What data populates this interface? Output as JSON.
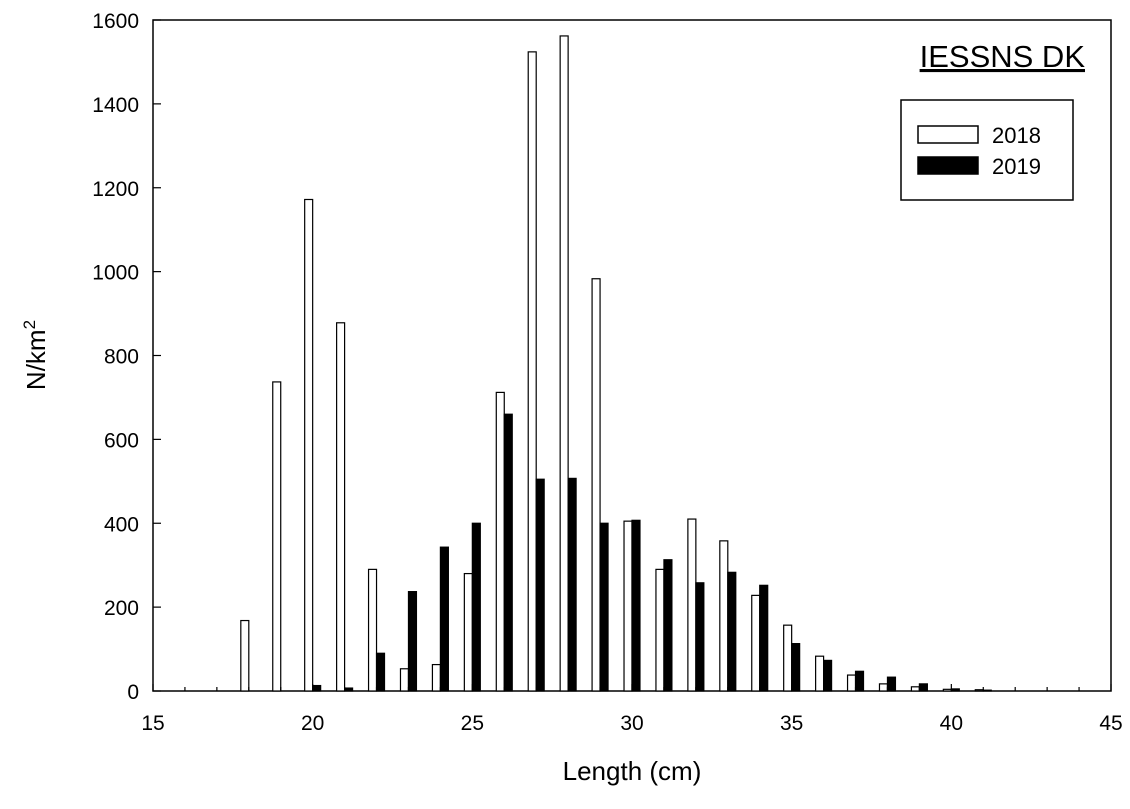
{
  "chart_data": {
    "type": "bar",
    "title": "",
    "xlabel": "Length (cm)",
    "ylabel": "N/km",
    "ylabel_superscript": "2",
    "annotation": "IESSNS DK",
    "xlim": [
      15,
      45
    ],
    "ylim": [
      0,
      1600
    ],
    "xticks": [
      15,
      20,
      25,
      30,
      35,
      40,
      45
    ],
    "yticks": [
      0,
      200,
      400,
      600,
      800,
      1000,
      1200,
      1400,
      1600
    ],
    "grid": false,
    "legend_position": "top-right",
    "x": [
      18,
      19,
      20,
      21,
      22,
      23,
      24,
      25,
      26,
      27,
      28,
      29,
      30,
      31,
      32,
      33,
      34,
      35,
      36,
      37,
      38,
      39,
      40,
      41
    ],
    "series": [
      {
        "name": "2018",
        "fill": "#ffffff",
        "values": [
          168,
          737,
          1172,
          878,
          290,
          53,
          63,
          280,
          712,
          1524,
          1562,
          983,
          405,
          290,
          410,
          358,
          228,
          157,
          83,
          38,
          17,
          10,
          4,
          3
        ]
      },
      {
        "name": "2019",
        "fill": "#000000",
        "values": [
          0,
          0,
          13,
          7,
          90,
          237,
          343,
          400,
          660,
          505,
          507,
          400,
          407,
          313,
          258,
          283,
          252,
          113,
          73,
          47,
          33,
          17,
          5,
          2
        ]
      }
    ]
  }
}
